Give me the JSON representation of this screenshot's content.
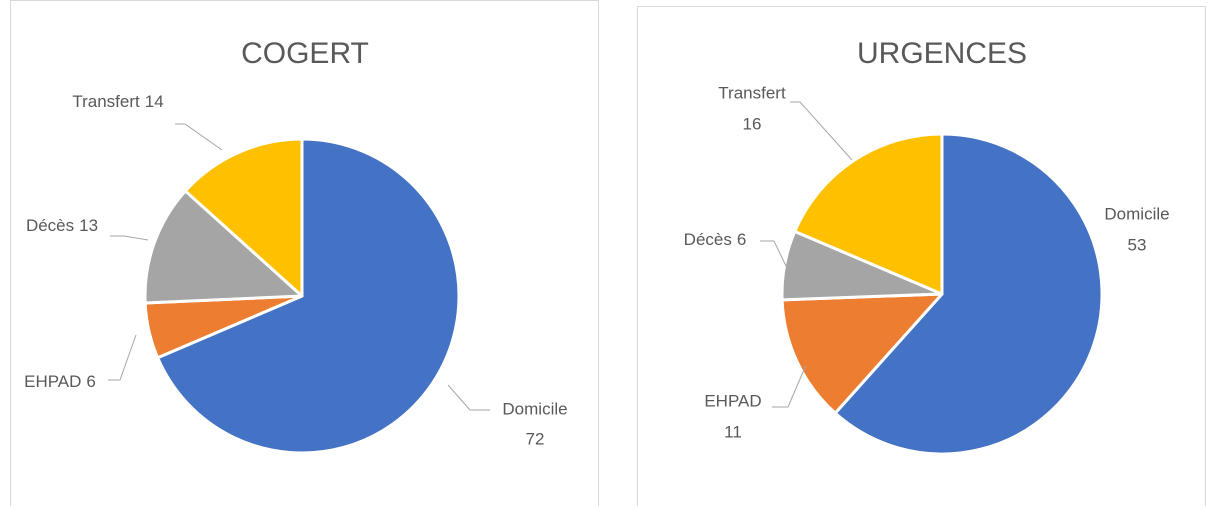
{
  "chart_data": [
    {
      "type": "pie",
      "title": "COGERT",
      "categories": [
        "Domicile",
        "EHPAD",
        "Décès",
        "Transfert"
      ],
      "values": [
        72,
        6,
        13,
        14
      ],
      "colors": [
        "#4472c4",
        "#ed7d31",
        "#a5a5a5",
        "#ffc000"
      ]
    },
    {
      "type": "pie",
      "title": "URGENCES",
      "categories": [
        "Domicile",
        "EHPAD",
        "Décès",
        "Transfert"
      ],
      "values": [
        53,
        11,
        6,
        16
      ],
      "colors": [
        "#4472c4",
        "#ed7d31",
        "#a5a5a5",
        "#ffc000"
      ]
    }
  ]
}
